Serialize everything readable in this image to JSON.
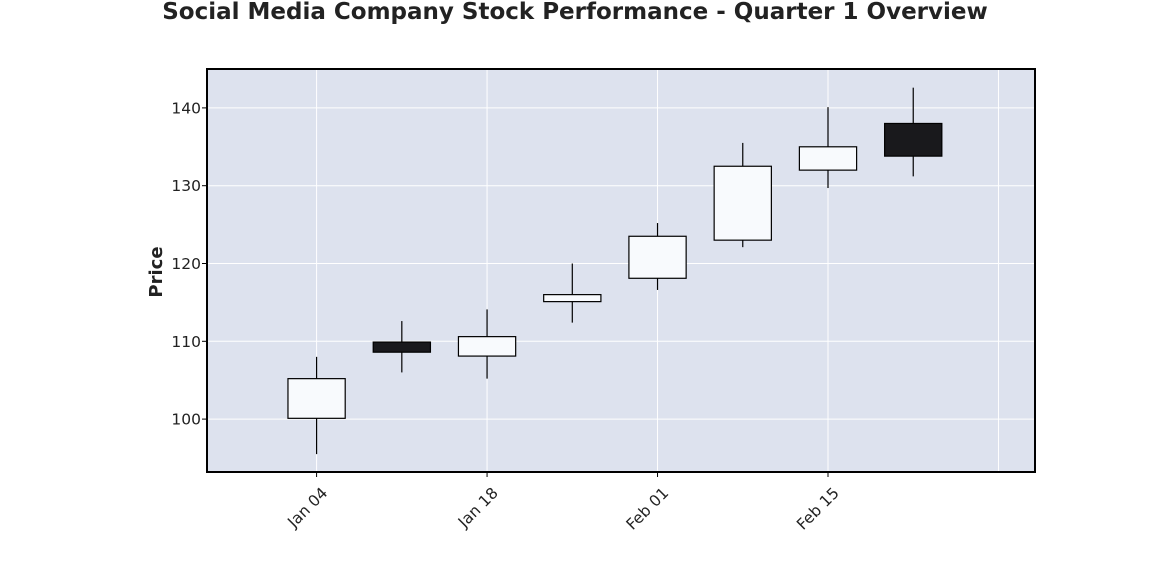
{
  "chart_data": {
    "type": "candlestick",
    "title": "Social Media Company Stock Performance - Quarter 1 Overview",
    "xlabel": "",
    "ylabel": "Price",
    "ylim": [
      93.2,
      145
    ],
    "y_ticks": [
      100,
      110,
      120,
      130,
      140
    ],
    "x_tick_labels": [
      {
        "x": "2024-01-04",
        "label": "Jan 04"
      },
      {
        "x": "2024-01-18",
        "label": "Jan 18"
      },
      {
        "x": "2024-02-01",
        "label": "Feb 01"
      },
      {
        "x": "2024-02-15",
        "label": "Feb 15"
      }
    ],
    "x_range": [
      "2023-12-26",
      "2024-03-03"
    ],
    "x_grid_dates": [
      "2024-01-04",
      "2024-01-18",
      "2024-02-01",
      "2024-02-15",
      "2024-02-29"
    ],
    "grid": true,
    "candles": [
      {
        "date": "2024-01-04",
        "open": 100.1,
        "high": 108.0,
        "low": 95.5,
        "close": 105.2
      },
      {
        "date": "2024-01-11",
        "open": 109.9,
        "high": 112.6,
        "low": 106.0,
        "close": 108.6
      },
      {
        "date": "2024-01-18",
        "open": 108.1,
        "high": 114.1,
        "low": 105.2,
        "close": 110.6
      },
      {
        "date": "2024-01-25",
        "open": 115.1,
        "high": 120.0,
        "low": 112.4,
        "close": 116.0
      },
      {
        "date": "2024-02-01",
        "open": 118.1,
        "high": 125.2,
        "low": 116.6,
        "close": 123.5
      },
      {
        "date": "2024-02-08",
        "open": 123.0,
        "high": 135.5,
        "low": 122.1,
        "close": 132.5
      },
      {
        "date": "2024-02-15",
        "open": 132.0,
        "high": 140.1,
        "low": 129.7,
        "close": 135.0
      },
      {
        "date": "2024-02-22",
        "open": 138.0,
        "high": 142.6,
        "low": 131.2,
        "close": 133.8
      }
    ],
    "colors": {
      "up_fill": "#f8fafd",
      "down_fill": "#19191c",
      "edge": "#000000",
      "plot_background": "#dde2ee",
      "grid": "#ffffff"
    }
  }
}
